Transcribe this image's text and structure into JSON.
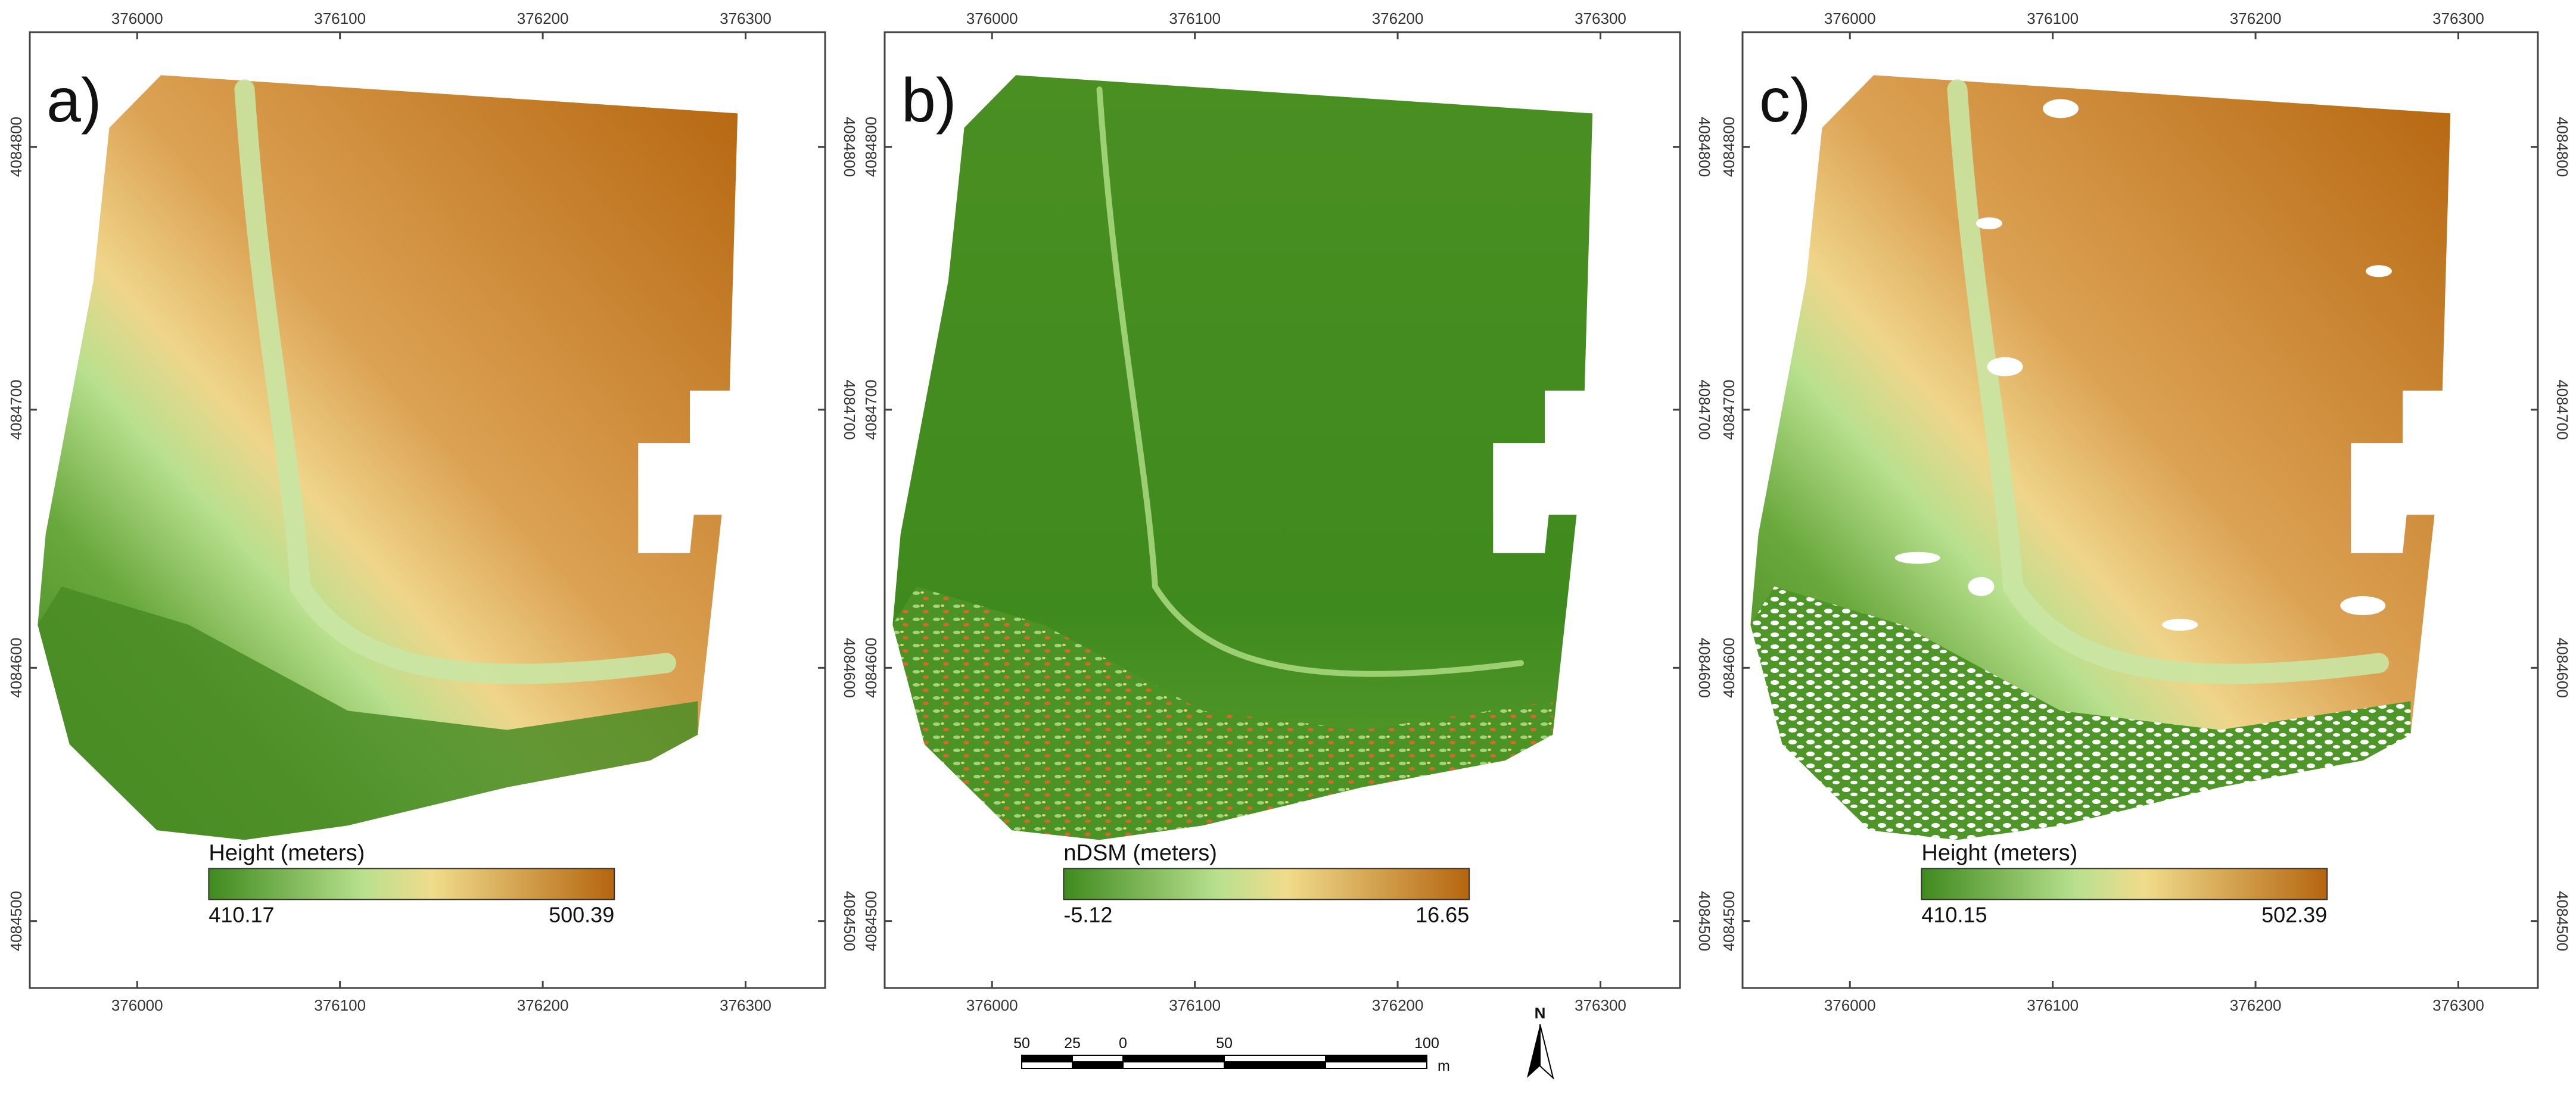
{
  "panels": [
    {
      "letter": "a)",
      "x_ticks": [
        "376000",
        "376100",
        "376200",
        "376300"
      ],
      "y_ticks": [
        "4084800",
        "4084700",
        "4084600",
        "4084500"
      ],
      "legend": {
        "title": "Height (meters)",
        "min": "410.17",
        "max": "500.39"
      },
      "style": "dem",
      "colors": {
        "low": "#3f8a1e",
        "mid": "#b8e08e",
        "mid2": "#f0dc8c",
        "high": "#b5650e"
      }
    },
    {
      "letter": "b)",
      "x_ticks": [
        "376000",
        "376100",
        "376200",
        "376300"
      ],
      "y_ticks": [
        "4084800",
        "4084700",
        "4084600",
        "4084500"
      ],
      "legend": {
        "title": "nDSM (meters)",
        "min": "-5.12",
        "max": "16.65"
      },
      "style": "ndsm",
      "colors": {
        "low": "#3f8a1e",
        "mid": "#b8e08e",
        "mid2": "#f0dc8c",
        "high": "#b5650e"
      }
    },
    {
      "letter": "c)",
      "x_ticks": [
        "376000",
        "376100",
        "376200",
        "376300"
      ],
      "y_ticks": [
        "4084800",
        "4084700",
        "4084600",
        "4084500"
      ],
      "legend": {
        "title": "Height (meters)",
        "min": "410.15",
        "max": "502.39"
      },
      "style": "dtm",
      "colors": {
        "low": "#3f8a1e",
        "mid": "#b8e08e",
        "mid2": "#f0dc8c",
        "high": "#b5650e"
      }
    }
  ],
  "scale_bar": {
    "labels": [
      "50",
      "25",
      "0",
      "50",
      "100"
    ],
    "unit": "m"
  },
  "north_arrow": {
    "label": "N",
    "icon": "north-arrow-icon"
  }
}
